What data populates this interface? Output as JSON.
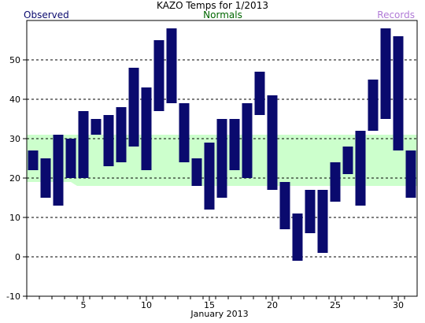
{
  "chart_data": {
    "type": "bar",
    "title": "KAZO Temps for  1/2013",
    "xlabel": "January 2013",
    "legend": {
      "observed": "Observed",
      "normals": "Normals",
      "records": "Records",
      "placement": "top"
    },
    "colors": {
      "observed": "#0a0a6e",
      "normals_fill": "#ccffcc",
      "normals_label": "#006600",
      "records_label": "#b07ad6",
      "observed_label": "#0a0a6e",
      "grid": "#000000"
    },
    "grid": true,
    "ylim": [
      -10,
      60
    ],
    "yticks": [
      "-10",
      "0",
      "10",
      "20",
      "30",
      "40",
      "50"
    ],
    "xlim": [
      0.5,
      31.5
    ],
    "xticks": [
      "5",
      "10",
      "15",
      "20",
      "25",
      "30"
    ],
    "normals": {
      "days": [
        1,
        4,
        4.5,
        31
      ],
      "high": [
        31,
        31,
        31,
        31
      ],
      "low": [
        19,
        19,
        18,
        18
      ]
    },
    "series": [
      {
        "name": "Observed",
        "days": [
          1,
          2,
          3,
          4,
          5,
          6,
          7,
          8,
          9,
          10,
          11,
          12,
          13,
          14,
          15,
          16,
          17,
          18,
          19,
          20,
          21,
          22,
          23,
          24,
          25,
          26,
          27,
          28,
          29,
          30,
          31
        ],
        "high": [
          27,
          25,
          31,
          30,
          37,
          35,
          36,
          38,
          48,
          43,
          55,
          58,
          39,
          25,
          29,
          35,
          35,
          39,
          47,
          41,
          19,
          11,
          17,
          17,
          24,
          28,
          32,
          45,
          58,
          56,
          27
        ],
        "low": [
          22,
          15,
          13,
          20,
          20,
          31,
          23,
          24,
          28,
          22,
          37,
          39,
          24,
          18,
          12,
          15,
          22,
          20,
          36,
          17,
          7,
          -1,
          6,
          1,
          14,
          21,
          13,
          32,
          35,
          27,
          15
        ]
      }
    ]
  }
}
